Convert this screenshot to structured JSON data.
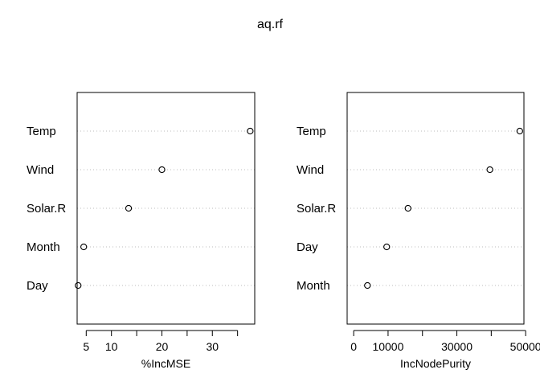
{
  "title": "aq.rf",
  "chart_data": [
    {
      "type": "dotchart",
      "xlabel": "%IncMSE",
      "xlim": [
        3.2,
        38.4
      ],
      "xticks": [
        5,
        10,
        15,
        20,
        25,
        30,
        35
      ],
      "xticklabels": [
        "5",
        "10",
        "",
        "20",
        "",
        "30",
        ""
      ],
      "categories": [
        "Temp",
        "Wind",
        "Solar.R",
        "Month",
        "Day"
      ],
      "values": [
        37.5,
        20.0,
        13.4,
        4.5,
        3.4
      ],
      "grid": "dotted-horizontal"
    },
    {
      "type": "dotchart",
      "xlabel": "IncNodePurity",
      "xlim": [
        -1900,
        49500
      ],
      "xticks": [
        0,
        10000,
        20000,
        30000,
        40000,
        50000
      ],
      "xticklabels": [
        "0",
        "10000",
        "",
        "30000",
        "",
        "50000"
      ],
      "categories": [
        "Temp",
        "Wind",
        "Solar.R",
        "Day",
        "Month"
      ],
      "values": [
        48300,
        39600,
        15800,
        9600,
        4000
      ],
      "grid": "dotted-horizontal"
    }
  ]
}
